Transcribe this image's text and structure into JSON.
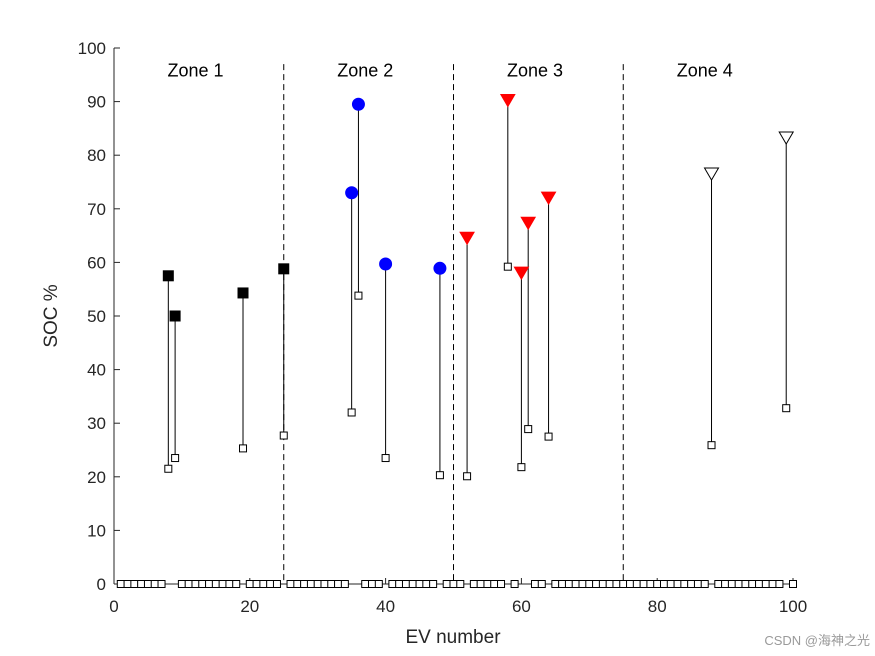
{
  "chart_data": {
    "type": "scatter",
    "xlabel": "EV number",
    "ylabel": "SOC %",
    "xlim": [
      0,
      100
    ],
    "ylim": [
      0,
      100
    ],
    "xticks": [
      0,
      20,
      40,
      60,
      80,
      100
    ],
    "yticks": [
      0,
      10,
      20,
      30,
      40,
      50,
      60,
      70,
      80,
      90,
      100
    ],
    "zone_boundaries": [
      25,
      50,
      75
    ],
    "zones": [
      {
        "label": "Zone 1",
        "x_center": 12
      },
      {
        "label": "Zone 2",
        "x_center": 37
      },
      {
        "label": "Zone 3",
        "x_center": 62
      },
      {
        "label": "Zone 4",
        "x_center": 87
      }
    ],
    "series": [
      {
        "name": "Zone 1 EVs",
        "marker": "filled-square",
        "color": "#000000",
        "points": [
          {
            "x": 8,
            "initial": 21.5,
            "final": 57.5
          },
          {
            "x": 9,
            "initial": 23.5,
            "final": 50
          },
          {
            "x": 19,
            "initial": 25.3,
            "final": 54.3
          },
          {
            "x": 25,
            "initial": 27.7,
            "final": 58.8
          }
        ]
      },
      {
        "name": "Zone 2 EVs",
        "marker": "filled-circle",
        "color": "#0000ff",
        "points": [
          {
            "x": 35,
            "initial": 32,
            "final": 73
          },
          {
            "x": 36,
            "initial": 53.8,
            "final": 89.5
          },
          {
            "x": 40,
            "initial": 23.5,
            "final": 59.7
          },
          {
            "x": 48,
            "initial": 20.3,
            "final": 58.9
          }
        ]
      },
      {
        "name": "Zone 3 EVs",
        "marker": "filled-triangle-down",
        "color": "#ff0000",
        "points": [
          {
            "x": 52,
            "initial": 20.1,
            "final": 64.5
          },
          {
            "x": 58,
            "initial": 59.2,
            "final": 90.2
          },
          {
            "x": 60,
            "initial": 21.8,
            "final": 58
          },
          {
            "x": 61,
            "initial": 28.9,
            "final": 67.3
          },
          {
            "x": 64,
            "initial": 27.5,
            "final": 72
          }
        ]
      },
      {
        "name": "Zone 4 EVs",
        "marker": "open-triangle-down",
        "color": "#000000",
        "points": [
          {
            "x": 88,
            "initial": 25.9,
            "final": 76.5
          },
          {
            "x": 99,
            "initial": 32.8,
            "final": 83.2
          }
        ]
      }
    ],
    "idle_marker": "open-square",
    "idle_value": 0
  },
  "watermark": "CSDN @海神之光"
}
